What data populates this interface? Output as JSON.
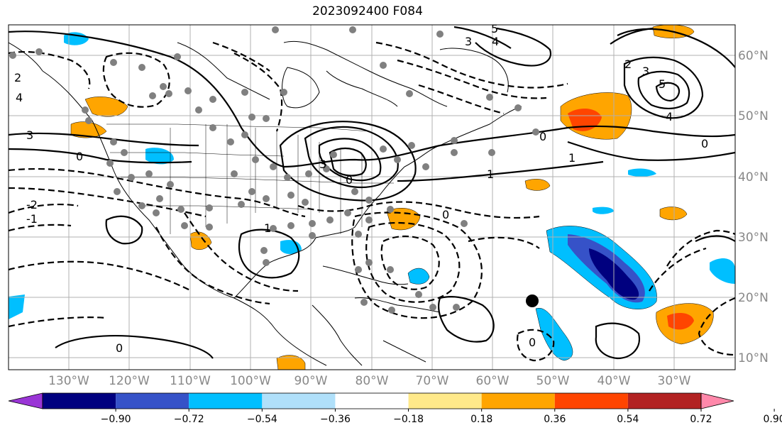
{
  "title": "2023092400 F084",
  "lon_ticks": [
    "130°W",
    "120°W",
    "110°W",
    "100°W",
    "90°W",
    "80°W",
    "70°W",
    "60°W",
    "50°W",
    "40°W",
    "30°W"
  ],
  "lat_ticks": [
    "60°N",
    "50°N",
    "40°N",
    "30°N",
    "20°N",
    "10°N"
  ],
  "colorbar": {
    "tick_labels": [
      "−0.90",
      "−0.72",
      "−0.54",
      "−0.36",
      "−0.18",
      "0.18",
      "0.36",
      "0.54",
      "0.72",
      "0.90"
    ],
    "colors": [
      "#9a35d6",
      "#00007f",
      "#3652c8",
      "#00bfff",
      "#b0e0fa",
      "#ffffff",
      "#ffe98a",
      "#ffa500",
      "#ff4500",
      "#b22222",
      "#ff88aa"
    ]
  },
  "contour_labels": [
    "5",
    "4",
    "3",
    "2",
    "1",
    "0",
    "-1",
    "-2"
  ]
}
